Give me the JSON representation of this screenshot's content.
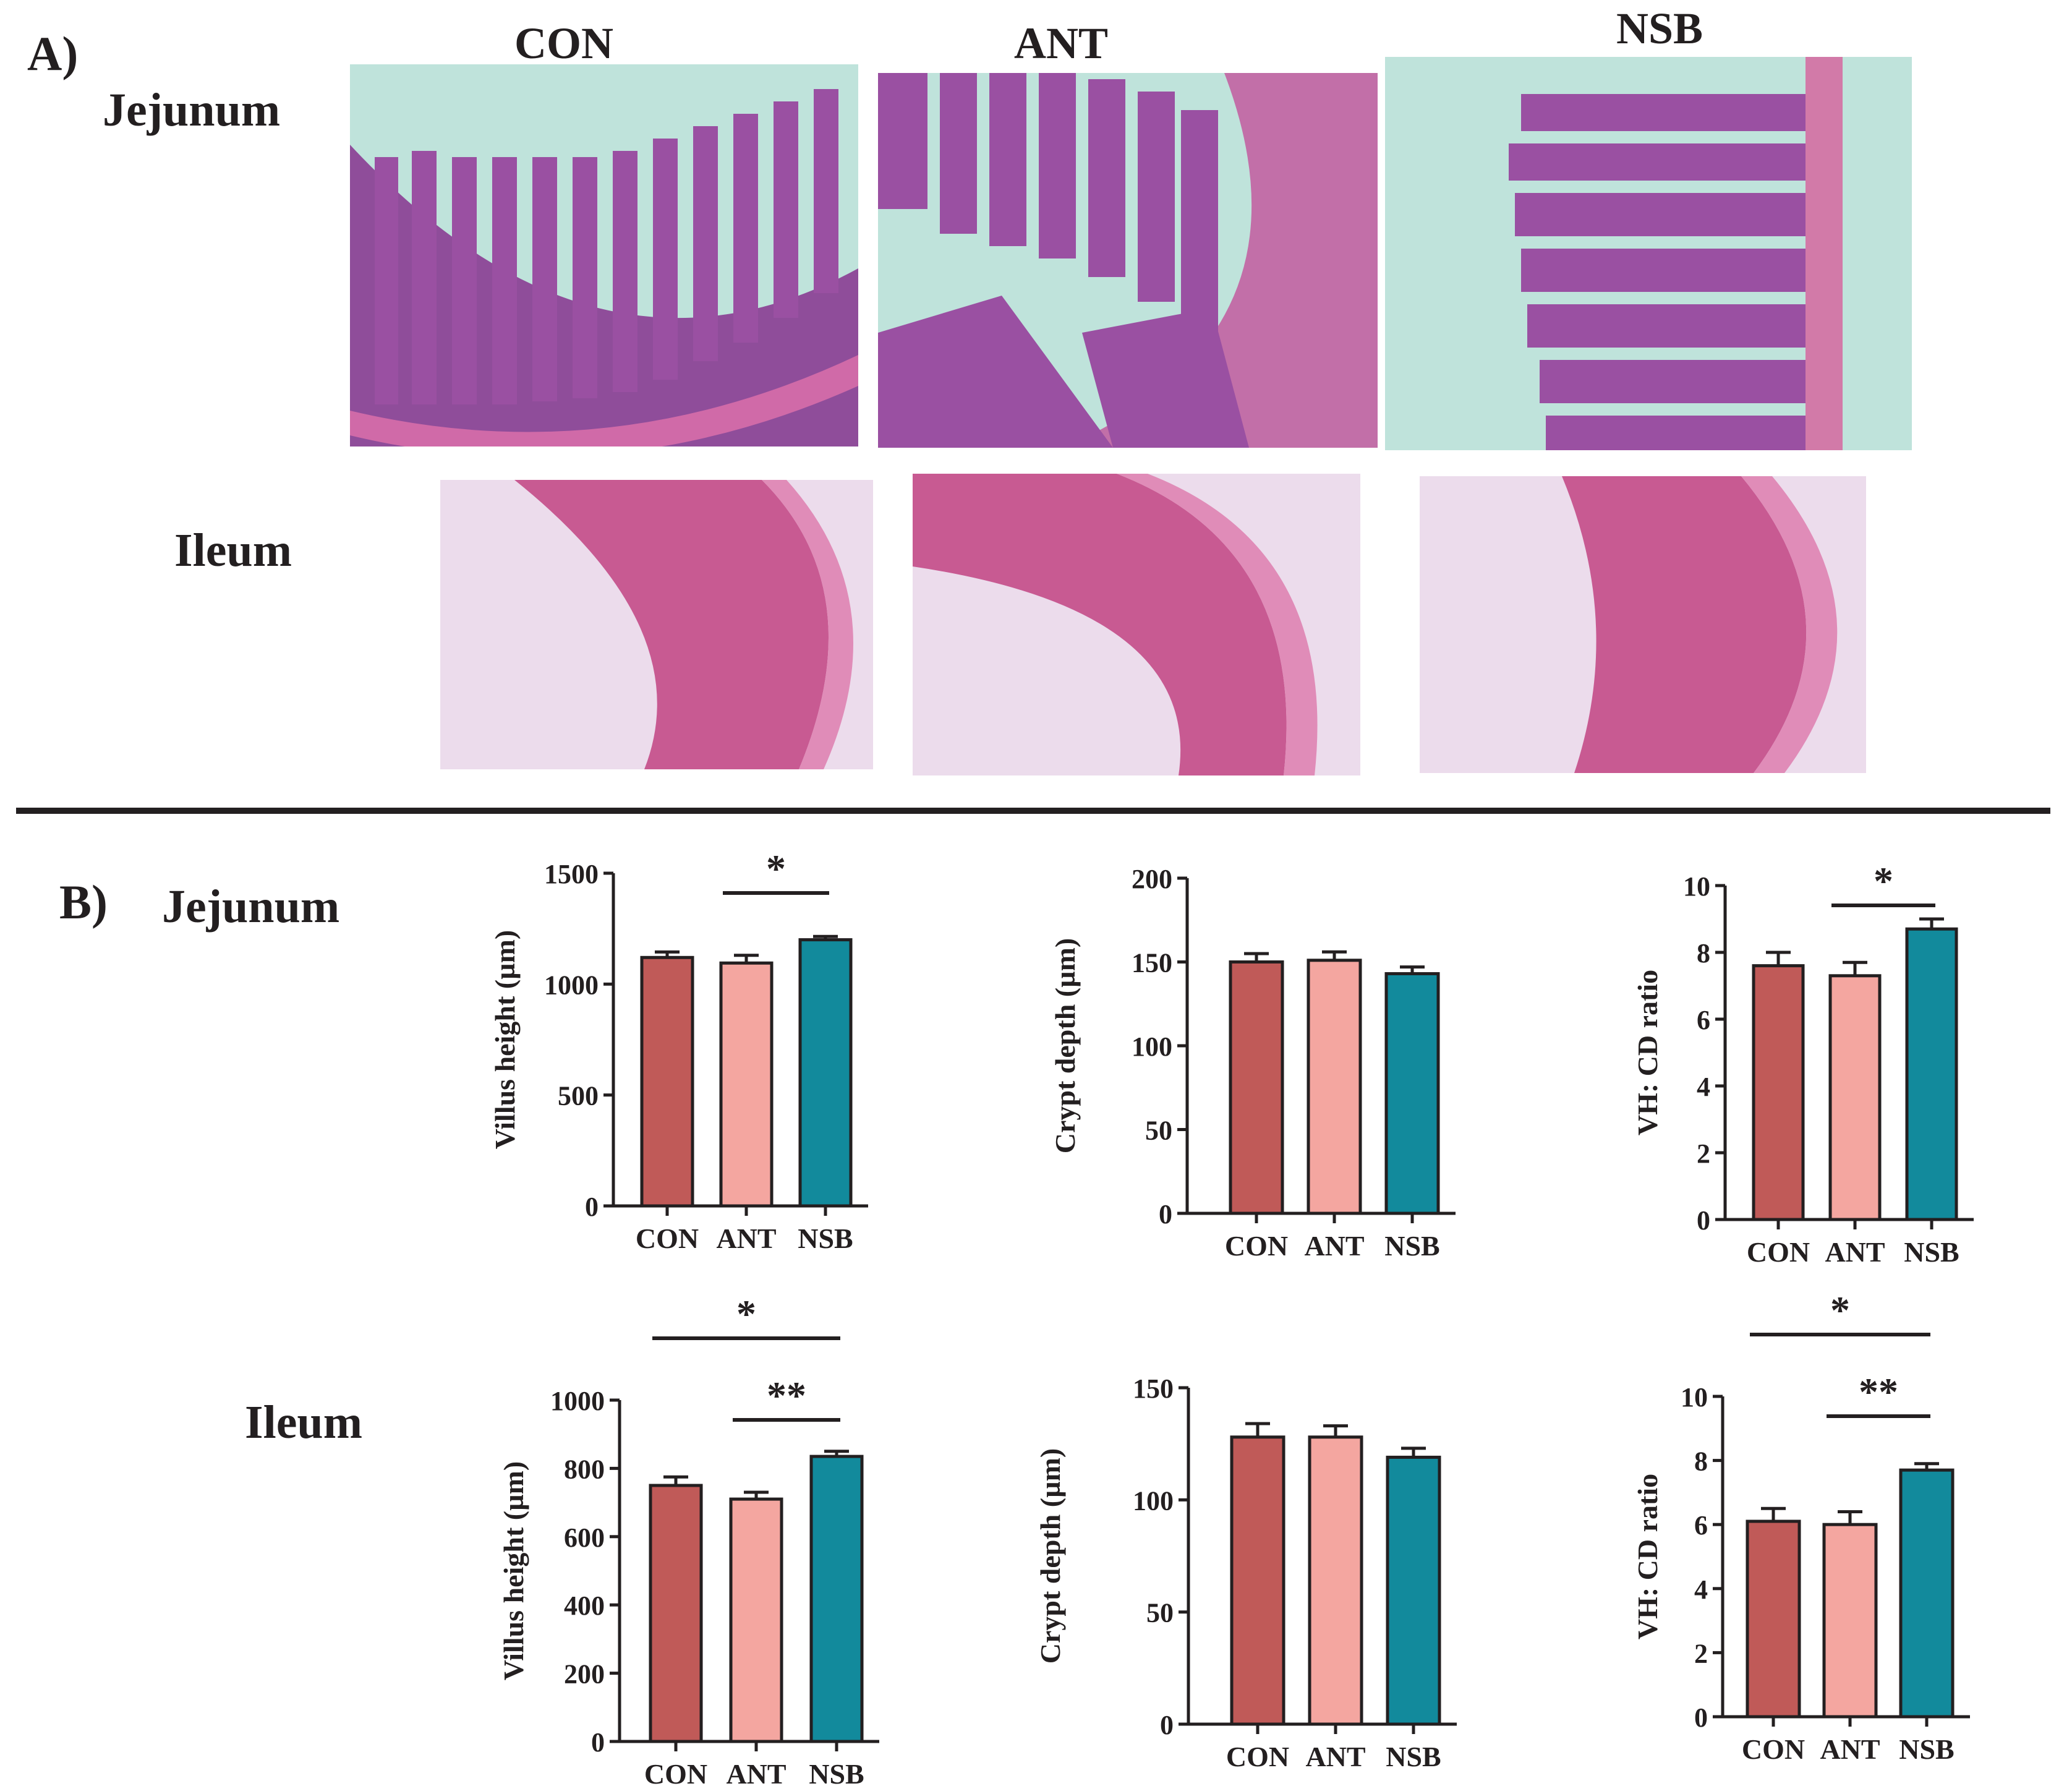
{
  "panel_a": {
    "letter": "A)",
    "columns": [
      "CON",
      "ANT",
      "NSB"
    ],
    "rows": [
      "Jejunum",
      "Ileum"
    ]
  },
  "panel_b": {
    "letter": "B)",
    "rows": [
      "Jejunum",
      "Ileum"
    ]
  },
  "colors": {
    "CON": "#c05a58",
    "ANT": "#f4a6a0",
    "NSB": "#128a9c",
    "axis": "#231f20",
    "tissue_jejunum": "#9c4a9c",
    "tissue_ileum": "#c4528e",
    "background_slide": "#b9e3dc"
  },
  "chart_data": [
    {
      "type": "bar",
      "tissue": "Jejunum",
      "categories": [
        "CON",
        "ANT",
        "NSB"
      ],
      "values": [
        1120,
        1095,
        1200
      ],
      "errors": [
        25,
        35,
        15
      ],
      "ylabel": "Villus height (µm)",
      "ylim": [
        0,
        1500
      ],
      "yticks": [
        "0",
        "500",
        "1000",
        "1500"
      ],
      "significance": [
        {
          "pair": [
            "ANT",
            "NSB"
          ],
          "label": "*"
        }
      ]
    },
    {
      "type": "bar",
      "tissue": "Jejunum",
      "categories": [
        "CON",
        "ANT",
        "NSB"
      ],
      "values": [
        150,
        151,
        143
      ],
      "errors": [
        5,
        5,
        4
      ],
      "ylabel": "Crypt depth (µm)",
      "ylim": [
        0,
        200
      ],
      "yticks": [
        "0",
        "50",
        "100",
        "150",
        "200"
      ],
      "significance": []
    },
    {
      "type": "bar",
      "tissue": "Jejunum",
      "categories": [
        "CON",
        "ANT",
        "NSB"
      ],
      "values": [
        7.6,
        7.3,
        8.7
      ],
      "errors": [
        0.4,
        0.4,
        0.3
      ],
      "ylabel": "VH: CD ratio",
      "ylim": [
        0,
        10
      ],
      "yticks": [
        "0",
        "2",
        "4",
        "6",
        "8",
        "10"
      ],
      "significance": [
        {
          "pair": [
            "ANT",
            "NSB"
          ],
          "label": "*"
        }
      ]
    },
    {
      "type": "bar",
      "tissue": "Ileum",
      "categories": [
        "CON",
        "ANT",
        "NSB"
      ],
      "values": [
        750,
        710,
        835
      ],
      "errors": [
        25,
        20,
        15
      ],
      "ylabel": "Villus height (µm)",
      "ylim": [
        0,
        1000
      ],
      "yticks": [
        "0",
        "200",
        "400",
        "600",
        "800",
        "1000"
      ],
      "significance": [
        {
          "pair": [
            "CON",
            "NSB"
          ],
          "label": "*"
        },
        {
          "pair": [
            "ANT",
            "NSB"
          ],
          "label": "**"
        }
      ]
    },
    {
      "type": "bar",
      "tissue": "Ileum",
      "categories": [
        "CON",
        "ANT",
        "NSB"
      ],
      "values": [
        128,
        128,
        119
      ],
      "errors": [
        6,
        5,
        4
      ],
      "ylabel": "Crypt depth (µm)",
      "ylim": [
        0,
        150
      ],
      "yticks": [
        "0",
        "50",
        "100",
        "150"
      ],
      "significance": []
    },
    {
      "type": "bar",
      "tissue": "Ileum",
      "categories": [
        "CON",
        "ANT",
        "NSB"
      ],
      "values": [
        6.1,
        6.0,
        7.7
      ],
      "errors": [
        0.4,
        0.4,
        0.2
      ],
      "ylabel": "VH: CD ratio",
      "ylim": [
        0,
        10
      ],
      "yticks": [
        "0",
        "2",
        "4",
        "6",
        "8",
        "10"
      ],
      "significance": [
        {
          "pair": [
            "CON",
            "NSB"
          ],
          "label": "*"
        },
        {
          "pair": [
            "ANT",
            "NSB"
          ],
          "label": "**"
        }
      ]
    }
  ]
}
